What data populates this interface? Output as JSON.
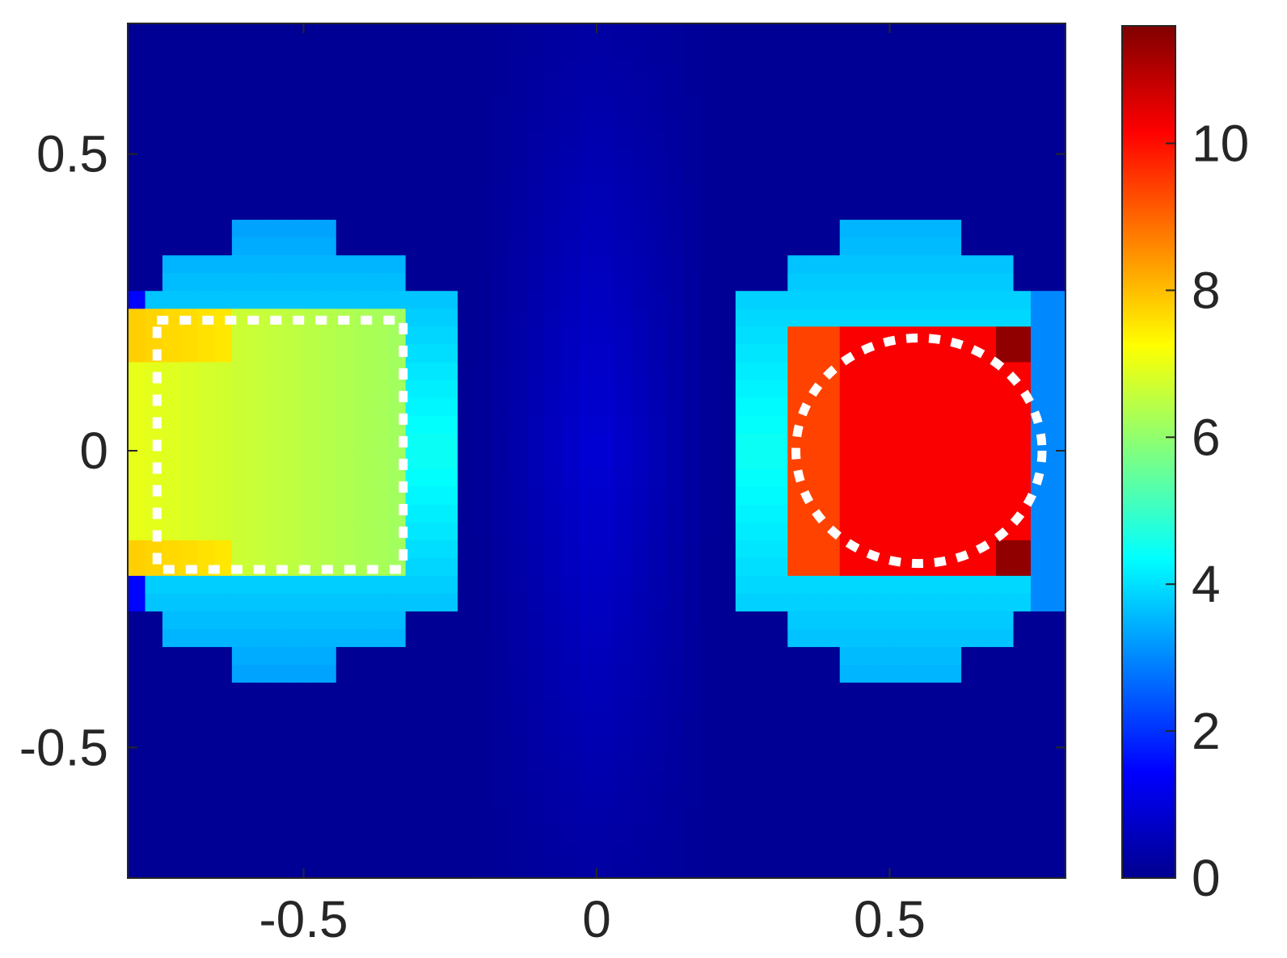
{
  "chart_data": {
    "type": "heatmap",
    "title": "",
    "xlabel": "",
    "ylabel": "",
    "xlim": [
      -0.8,
      0.8
    ],
    "ylim": [
      -0.72,
      0.72
    ],
    "x_ticks": [
      {
        "value": -0.5,
        "label": "-0.5"
      },
      {
        "value": 0,
        "label": "0"
      },
      {
        "value": 0.5,
        "label": "0.5"
      }
    ],
    "y_ticks": [
      {
        "value": 0.5,
        "label": "0.5"
      },
      {
        "value": 0,
        "label": "0"
      },
      {
        "value": -0.5,
        "label": "-0.5"
      }
    ],
    "colorbar": {
      "colormap": "jet",
      "range": [
        0,
        11.6
      ],
      "ticks": [
        {
          "value": 0,
          "label": "0"
        },
        {
          "value": 2,
          "label": "2"
        },
        {
          "value": 4,
          "label": "4"
        },
        {
          "value": 6,
          "label": "6"
        },
        {
          "value": 8,
          "label": "8"
        },
        {
          "value": 10,
          "label": "10"
        }
      ]
    },
    "background_value": 0.25,
    "regions": [
      {
        "shape": "blob",
        "x": -0.53,
        "y": 0.0,
        "value": 4.5
      },
      {
        "shape": "blob",
        "x": 0.52,
        "y": 0.0,
        "value": 4.5
      },
      {
        "shape": "rect",
        "x0": -0.79,
        "x1": -0.33,
        "y0": -0.21,
        "y1": 0.24,
        "value": 7.0
      },
      {
        "shape": "rect",
        "x0": 0.33,
        "x1": 0.75,
        "y0": -0.21,
        "y1": 0.21,
        "value": 10.2
      },
      {
        "shape": "channel",
        "x0": -0.2,
        "x1": 0.2,
        "value": 1.0
      }
    ],
    "inclusion_outlines": [
      {
        "shape": "square",
        "x0": -0.75,
        "x1": -0.33,
        "y0": -0.2,
        "y1": 0.22,
        "color": "#ffffff"
      },
      {
        "shape": "ellipse",
        "cx": 0.55,
        "cy": 0.0,
        "rx": 0.21,
        "ry": 0.19,
        "color": "#ffffff"
      }
    ]
  }
}
